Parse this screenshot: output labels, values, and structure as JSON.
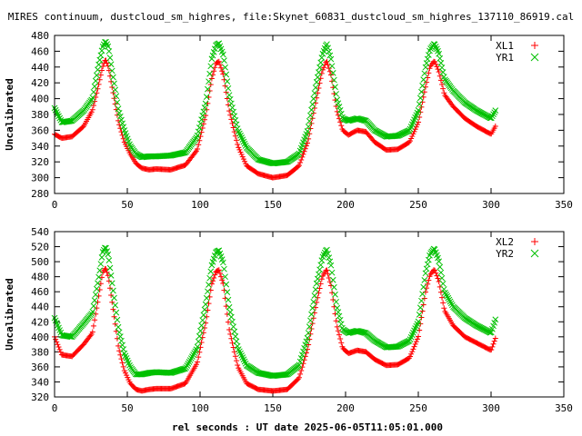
{
  "title": "MIRES continuum, dustcloud_sm_highres, file:Skynet_60831_dustcloud_sm_highres_137110_86919.cal",
  "xlabel": "rel seconds : UT date 2025-06-05T11:05:01.000",
  "colors": {
    "red": "#ff0000",
    "green": "#00c000",
    "frame": "#000000"
  },
  "chart_data": [
    {
      "type": "scatter",
      "ylabel": "Uncalibrated",
      "xlim": [
        0,
        350
      ],
      "ylim": [
        280,
        480
      ],
      "xticks": [
        0,
        50,
        100,
        150,
        200,
        250,
        300,
        350
      ],
      "yticks": [
        280,
        300,
        320,
        340,
        360,
        380,
        400,
        420,
        440,
        460,
        480
      ],
      "legend_position": "top-right",
      "series": [
        {
          "name": "XL1",
          "color": "#ff0000",
          "marker": "+",
          "x": [
            0,
            5,
            12,
            20,
            26,
            30,
            33,
            35,
            37,
            40,
            44,
            48,
            52,
            56,
            60,
            65,
            70,
            80,
            90,
            98,
            104,
            108,
            111,
            113,
            116,
            120,
            126,
            132,
            140,
            150,
            160,
            168,
            174,
            180,
            184,
            187,
            190,
            194,
            198,
            202,
            208,
            214,
            220,
            228,
            236,
            244,
            250,
            255,
            258,
            261,
            264,
            268,
            274,
            282,
            290,
            300,
            303
          ],
          "y": [
            355,
            350,
            352,
            365,
            385,
            415,
            440,
            450,
            440,
            410,
            370,
            345,
            330,
            318,
            312,
            310,
            311,
            310,
            316,
            335,
            380,
            425,
            445,
            447,
            430,
            385,
            340,
            315,
            305,
            300,
            303,
            315,
            345,
            400,
            435,
            448,
            430,
            385,
            360,
            354,
            360,
            358,
            345,
            335,
            336,
            345,
            370,
            415,
            440,
            448,
            435,
            405,
            390,
            375,
            365,
            355,
            365
          ]
        },
        {
          "name": "YR1",
          "color": "#00c000",
          "marker": "x",
          "x": [
            0,
            5,
            12,
            20,
            26,
            30,
            33,
            35,
            37,
            40,
            44,
            48,
            52,
            56,
            60,
            65,
            70,
            80,
            90,
            98,
            104,
            108,
            111,
            113,
            116,
            120,
            126,
            132,
            140,
            150,
            160,
            168,
            174,
            180,
            184,
            187,
            190,
            194,
            198,
            202,
            208,
            214,
            220,
            228,
            236,
            244,
            250,
            255,
            258,
            261,
            264,
            268,
            274,
            282,
            290,
            300,
            303
          ],
          "y": [
            388,
            370,
            372,
            385,
            400,
            440,
            465,
            473,
            465,
            430,
            385,
            360,
            340,
            330,
            326,
            327,
            327,
            328,
            332,
            352,
            395,
            450,
            468,
            470,
            455,
            405,
            360,
            338,
            323,
            318,
            320,
            330,
            360,
            420,
            455,
            470,
            450,
            400,
            375,
            372,
            375,
            372,
            360,
            352,
            353,
            360,
            385,
            440,
            462,
            470,
            458,
            425,
            410,
            395,
            385,
            375,
            385
          ]
        }
      ]
    },
    {
      "type": "scatter",
      "ylabel": "Uncalibrated",
      "xlim": [
        0,
        350
      ],
      "ylim": [
        320,
        540
      ],
      "xticks": [
        0,
        50,
        100,
        150,
        200,
        250,
        300,
        350
      ],
      "yticks": [
        320,
        340,
        360,
        380,
        400,
        420,
        440,
        460,
        480,
        500,
        520,
        540
      ],
      "legend_position": "top-right",
      "series": [
        {
          "name": "XL2",
          "color": "#ff0000",
          "marker": "+",
          "x": [
            0,
            5,
            12,
            20,
            26,
            30,
            33,
            35,
            37,
            40,
            44,
            48,
            52,
            56,
            60,
            65,
            70,
            80,
            90,
            98,
            104,
            108,
            111,
            113,
            116,
            120,
            126,
            132,
            140,
            150,
            160,
            168,
            174,
            180,
            184,
            187,
            190,
            194,
            198,
            202,
            208,
            214,
            220,
            228,
            236,
            244,
            250,
            255,
            258,
            261,
            264,
            268,
            274,
            282,
            290,
            300,
            303
          ],
          "y": [
            400,
            376,
            374,
            390,
            405,
            450,
            485,
            492,
            480,
            440,
            385,
            355,
            338,
            330,
            328,
            330,
            331,
            331,
            338,
            365,
            420,
            470,
            487,
            489,
            470,
            410,
            360,
            338,
            330,
            328,
            330,
            345,
            385,
            445,
            480,
            490,
            468,
            415,
            385,
            378,
            382,
            380,
            370,
            362,
            363,
            372,
            400,
            460,
            482,
            490,
            475,
            435,
            415,
            400,
            392,
            382,
            398
          ]
        },
        {
          "name": "YR2",
          "color": "#00c000",
          "marker": "x",
          "x": [
            0,
            5,
            12,
            20,
            26,
            30,
            33,
            35,
            37,
            40,
            44,
            48,
            52,
            56,
            60,
            65,
            70,
            80,
            90,
            98,
            104,
            108,
            111,
            113,
            116,
            120,
            126,
            132,
            140,
            150,
            160,
            168,
            174,
            180,
            184,
            187,
            190,
            194,
            198,
            202,
            208,
            214,
            220,
            228,
            236,
            244,
            250,
            255,
            258,
            261,
            264,
            268,
            274,
            282,
            290,
            300,
            303
          ],
          "y": [
            425,
            402,
            400,
            418,
            432,
            475,
            512,
            520,
            508,
            465,
            410,
            378,
            360,
            350,
            350,
            352,
            353,
            352,
            358,
            385,
            445,
            495,
            513,
            515,
            498,
            440,
            385,
            362,
            352,
            348,
            350,
            362,
            400,
            470,
            505,
            517,
            495,
            440,
            410,
            405,
            408,
            405,
            395,
            386,
            387,
            395,
            420,
            485,
            510,
            518,
            502,
            460,
            440,
            425,
            415,
            405,
            423
          ]
        }
      ]
    }
  ]
}
